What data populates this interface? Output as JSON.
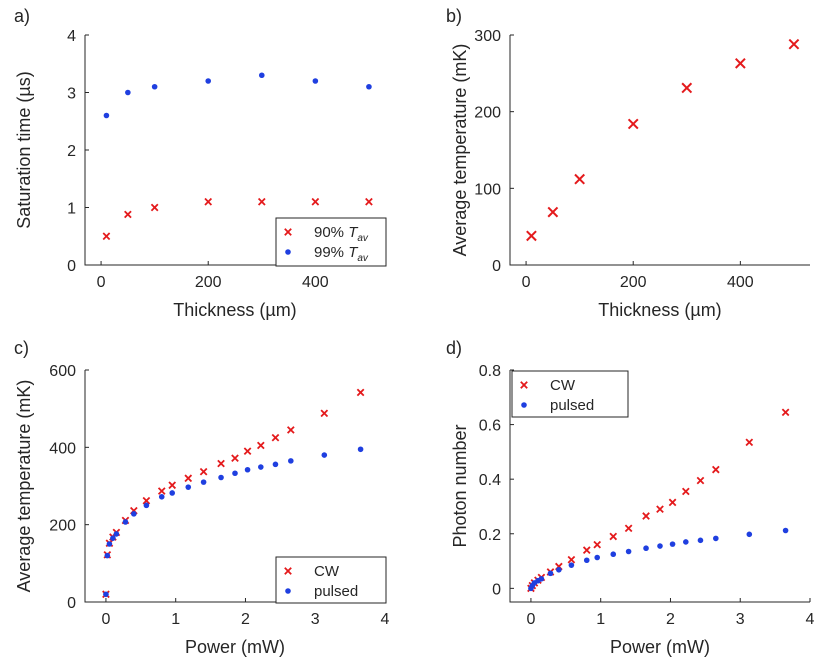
{
  "chart_data": [
    {
      "id": "a",
      "type": "scatter",
      "panel_label": "a)",
      "title": "",
      "xlabel": "Thickness (µm)",
      "ylabel": "Saturation time (µs)",
      "xlim": [
        -30,
        530
      ],
      "ylim": [
        0,
        4
      ],
      "xticks": [
        0,
        200,
        400
      ],
      "xtick_labels": [
        "0",
        "200",
        "400"
      ],
      "yticks": [
        0,
        1,
        2,
        3,
        4
      ],
      "ytick_labels": [
        "0",
        "1",
        "2",
        "3",
        "4"
      ],
      "legend_position": "bottom-right",
      "series": [
        {
          "name": "90% ",
          "name_sub": "T",
          "name_subscript": "av",
          "marker": "x",
          "color": "#e41a1c",
          "x": [
            10,
            50,
            100,
            200,
            300,
            400,
            500
          ],
          "y": [
            0.5,
            0.88,
            1.0,
            1.1,
            1.1,
            1.1,
            1.1
          ]
        },
        {
          "name": "99% ",
          "name_sub": "T",
          "name_subscript": "av",
          "marker": "dot",
          "color": "#1f3fe0",
          "x": [
            10,
            50,
            100,
            200,
            300,
            400,
            500
          ],
          "y": [
            2.6,
            3.0,
            3.1,
            3.2,
            3.3,
            3.2,
            3.1
          ]
        }
      ]
    },
    {
      "id": "b",
      "type": "scatter",
      "panel_label": "b)",
      "title": "",
      "xlabel": "Thickness (µm)",
      "ylabel": "Average temperature (mK)",
      "xlim": [
        -30,
        530
      ],
      "ylim": [
        0,
        300
      ],
      "xticks": [
        0,
        200,
        400
      ],
      "xtick_labels": [
        "0",
        "200",
        "400"
      ],
      "yticks": [
        0,
        100,
        200,
        300
      ],
      "ytick_labels": [
        "0",
        "100",
        "200",
        "300"
      ],
      "legend_position": "none",
      "series": [
        {
          "name": "",
          "marker": "x",
          "color": "#e41a1c",
          "x": [
            10,
            50,
            100,
            200,
            300,
            400,
            500
          ],
          "y": [
            38,
            69,
            112,
            184,
            231,
            263,
            288
          ]
        }
      ]
    },
    {
      "id": "c",
      "type": "scatter",
      "panel_label": "c)",
      "title": "",
      "xlabel": "Power (mW)",
      "ylabel": "Average temperature (mK)",
      "xlim": [
        -0.3,
        4
      ],
      "ylim": [
        0,
        600
      ],
      "xticks": [
        0,
        1,
        2,
        3,
        4
      ],
      "xtick_labels": [
        "0",
        "1",
        "2",
        "3",
        "4"
      ],
      "yticks": [
        0,
        200,
        400,
        600
      ],
      "ytick_labels": [
        "0",
        "200",
        "400",
        "600"
      ],
      "legend_position": "bottom-right",
      "series": [
        {
          "name": "CW",
          "marker": "x",
          "color": "#e41a1c",
          "x": [
            0,
            0.02,
            0.05,
            0.1,
            0.15,
            0.28,
            0.4,
            0.58,
            0.8,
            0.95,
            1.18,
            1.4,
            1.65,
            1.85,
            2.03,
            2.22,
            2.43,
            2.65,
            3.13,
            3.65
          ],
          "y": [
            20,
            122,
            152,
            168,
            180,
            211,
            236,
            262,
            287,
            302,
            320,
            337,
            358,
            372,
            390,
            405,
            425,
            445,
            488,
            542
          ]
        },
        {
          "name": "pulsed",
          "marker": "dot",
          "color": "#1f3fe0",
          "x": [
            0,
            0.02,
            0.05,
            0.1,
            0.15,
            0.28,
            0.4,
            0.58,
            0.8,
            0.95,
            1.18,
            1.4,
            1.65,
            1.85,
            2.03,
            2.22,
            2.43,
            2.65,
            3.13,
            3.65
          ],
          "y": [
            20,
            120,
            150,
            165,
            176,
            207,
            228,
            250,
            272,
            282,
            297,
            310,
            322,
            333,
            342,
            349,
            356,
            365,
            380,
            395
          ]
        }
      ]
    },
    {
      "id": "d",
      "type": "scatter",
      "panel_label": "d)",
      "title": "",
      "xlabel": "Power (mW)",
      "ylabel": "Photon number",
      "xlim": [
        -0.3,
        4
      ],
      "ylim": [
        -0.05,
        0.8
      ],
      "xticks": [
        0,
        1,
        2,
        3,
        4
      ],
      "xtick_labels": [
        "0",
        "1",
        "2",
        "3",
        "4"
      ],
      "yticks": [
        0,
        0.2,
        0.4,
        0.6,
        0.8
      ],
      "ytick_labels": [
        "0",
        "0.2",
        "0.4",
        "0.6",
        "0.8"
      ],
      "legend_position": "top-left",
      "series": [
        {
          "name": "CW",
          "marker": "x",
          "color": "#e41a1c",
          "x": [
            0,
            0.02,
            0.05,
            0.1,
            0.15,
            0.28,
            0.4,
            0.58,
            0.8,
            0.95,
            1.18,
            1.4,
            1.65,
            1.85,
            2.03,
            2.22,
            2.43,
            2.65,
            3.13,
            3.65
          ],
          "y": [
            0.0,
            0.01,
            0.02,
            0.03,
            0.04,
            0.06,
            0.08,
            0.105,
            0.14,
            0.16,
            0.19,
            0.22,
            0.265,
            0.29,
            0.315,
            0.355,
            0.395,
            0.435,
            0.535,
            0.645
          ]
        },
        {
          "name": "pulsed",
          "marker": "dot",
          "color": "#1f3fe0",
          "x": [
            0,
            0.02,
            0.05,
            0.1,
            0.15,
            0.28,
            0.4,
            0.58,
            0.8,
            0.95,
            1.18,
            1.4,
            1.65,
            1.85,
            2.03,
            2.22,
            2.43,
            2.65,
            3.13,
            3.65
          ],
          "y": [
            0.0,
            0.01,
            0.02,
            0.028,
            0.035,
            0.055,
            0.068,
            0.085,
            0.103,
            0.113,
            0.125,
            0.135,
            0.147,
            0.155,
            0.162,
            0.17,
            0.176,
            0.183,
            0.198,
            0.212
          ]
        }
      ]
    }
  ]
}
